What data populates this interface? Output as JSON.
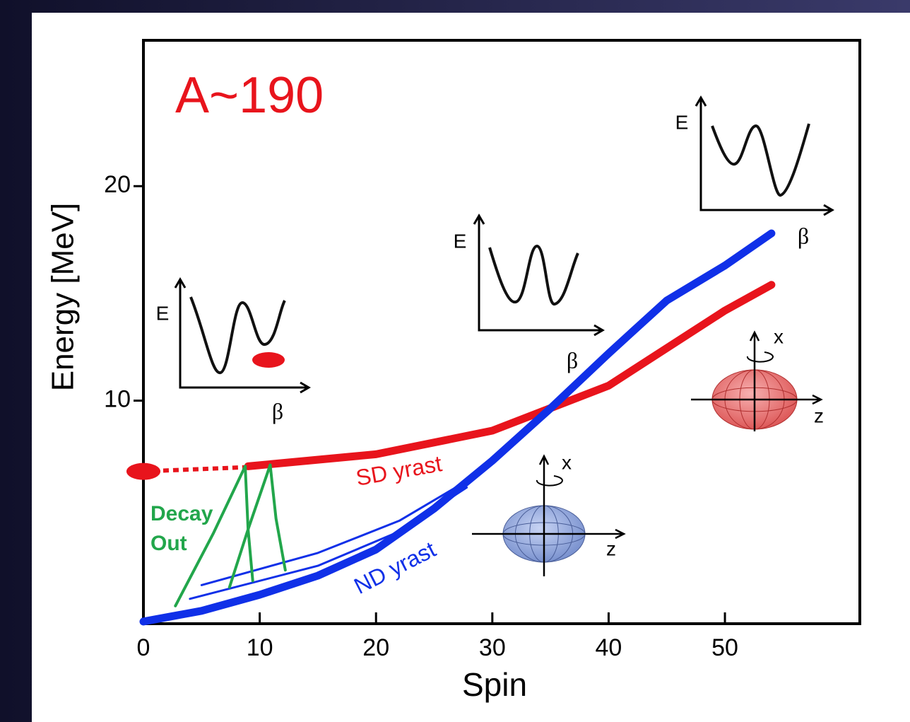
{
  "chart_data": {
    "type": "line",
    "title": "A~190",
    "x_label": "Spin",
    "y_label": "Energy [MeV]",
    "xlim": [
      0,
      61.6
    ],
    "ylim": [
      -0.4,
      26.8
    ],
    "xticks": [
      0,
      10,
      20,
      30,
      40,
      50
    ],
    "yticks": [
      10,
      20
    ],
    "series": [
      {
        "name": "SD yrast",
        "color": "#e8141c",
        "width": 11,
        "x": [
          9,
          20,
          30,
          40,
          50,
          54
        ],
        "values": [
          6.94,
          7.5,
          8.6,
          10.7,
          14.2,
          15.4
        ]
      },
      {
        "color": "#e8141c",
        "width": 6,
        "style": "dotted",
        "start_marker": true,
        "x": [
          0,
          9
        ],
        "values": [
          6.7,
          6.9
        ]
      },
      {
        "name": "ND yrast",
        "color": "#1030e8",
        "width": 11,
        "x": [
          0,
          5,
          10,
          15,
          20,
          25,
          30,
          35,
          40,
          45,
          50,
          54
        ],
        "values": [
          -0.3,
          0.2,
          0.95,
          1.84,
          3.06,
          4.97,
          7.2,
          9.64,
          12.2,
          14.67,
          16.3,
          17.8
        ]
      },
      {
        "color": "#1030e8",
        "width": 3,
        "x": [
          5,
          15,
          22,
          28.4
        ],
        "values": [
          1.4,
          2.9,
          4.4,
          6.45
        ]
      },
      {
        "color": "#1030e8",
        "width": 3,
        "x": [
          4,
          15,
          22,
          27.8
        ],
        "values": [
          0.76,
          2.3,
          3.9,
          5.95
        ]
      },
      {
        "color": "#22a64b",
        "width": 4,
        "x": [
          8.75,
          6,
          2.75
        ],
        "values": [
          6.94,
          3.8,
          0.43
        ]
      },
      {
        "color": "#22a64b",
        "width": 4,
        "x": [
          8.75,
          9,
          9.4
        ],
        "values": [
          6.94,
          4,
          1.6
        ]
      },
      {
        "color": "#22a64b",
        "width": 4,
        "x": [
          10.9,
          9,
          7.4
        ],
        "values": [
          7.0,
          4,
          1.3
        ]
      },
      {
        "color": "#22a64b",
        "width": 4,
        "x": [
          10.9,
          11.4,
          12.2
        ],
        "values": [
          7.0,
          4.5,
          2.1
        ]
      }
    ],
    "annotations": [
      "Decay",
      "Out"
    ],
    "potential_insets": [
      {
        "y_label": "E",
        "x_label": "β"
      },
      {
        "y_label": "E",
        "x_label": "β"
      },
      {
        "y_label": "E",
        "x_label": "β"
      }
    ],
    "shape_insets": [
      {
        "vertical_axis": "x",
        "horizontal_axis": "z"
      },
      {
        "vertical_axis": "x",
        "horizontal_axis": "z"
      }
    ]
  }
}
